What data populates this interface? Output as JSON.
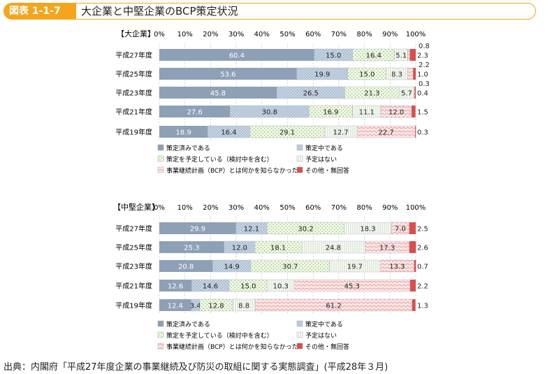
{
  "header": {
    "badge": "図表 1-1-7",
    "title": "大企業と中堅企業のBCP策定状況"
  },
  "source": "出典：内閣府「平成27年度企業の事業継続及び防災の取組に関する実態調査」(平成28年３月)",
  "axis_ticks": [
    "0%",
    "10%",
    "20%",
    "30%",
    "40%",
    "50%",
    "60%",
    "70%",
    "80%",
    "90%",
    "100%"
  ],
  "legend": [
    "策定済みである",
    "策定中である",
    "策定を予定している（検討中を含む）",
    "予定はない",
    "事業継続計画（BCP）とは何かを知らなかった",
    "その他・無回答"
  ],
  "colors": {
    "accent": "#f4a51c",
    "done": "#8ea0b6",
    "inprog": "#c6d3e2",
    "planned": "#e9f3d9",
    "none": "#f7f7f0",
    "unknown": "#f9dede",
    "other": "#d94f4f"
  },
  "chart_data": [
    {
      "type": "bar",
      "orientation": "horizontal",
      "stacked": true,
      "title": "【大企業】",
      "categories": [
        "平成27年度",
        "平成25年度",
        "平成23年度",
        "平成21年度",
        "平成19年度"
      ],
      "series": [
        {
          "name": "策定済みである",
          "values": [
            60.4,
            53.6,
            45.8,
            27.6,
            18.9
          ]
        },
        {
          "name": "策定中である",
          "values": [
            15.0,
            19.9,
            26.5,
            30.8,
            16.4
          ]
        },
        {
          "name": "策定を予定している（検討中を含む）",
          "values": [
            16.4,
            15.0,
            21.3,
            16.9,
            29.1
          ]
        },
        {
          "name": "予定はない",
          "values": [
            5.1,
            8.3,
            5.7,
            11.1,
            12.7
          ]
        },
        {
          "name": "事業継続計画（BCP）とは何かを知らなかった",
          "values": [
            0.8,
            2.2,
            0.3,
            12.0,
            22.7
          ]
        },
        {
          "name": "その他・無回答",
          "values": [
            2.3,
            1.0,
            0.4,
            1.5,
            0.3
          ]
        }
      ],
      "label_text": [
        [
          "60.4",
          "15.0",
          "16.4",
          "5.1",
          "0.8",
          "2.3"
        ],
        [
          "53.6",
          "19.9",
          "15.0",
          "8.3",
          "2.2",
          "1.0"
        ],
        [
          "45.8",
          "26.5",
          "21.3",
          "5.7",
          "0.3",
          "0.4"
        ],
        [
          "27.6",
          "30.8",
          "16.9",
          "11.1",
          "12.0",
          "1.5"
        ],
        [
          "18.9",
          "16.4",
          "29.1",
          "12.7",
          "22.7",
          "0.3"
        ]
      ],
      "xlim": [
        0,
        100
      ]
    },
    {
      "type": "bar",
      "orientation": "horizontal",
      "stacked": true,
      "title": "【中堅企業】",
      "categories": [
        "平成27年度",
        "平成25年度",
        "平成23年度",
        "平成21年度",
        "平成19年度"
      ],
      "series": [
        {
          "name": "策定済みである",
          "values": [
            29.9,
            25.3,
            20.8,
            12.6,
            12.4
          ]
        },
        {
          "name": "策定中である",
          "values": [
            12.1,
            12.0,
            14.9,
            14.6,
            3.4
          ]
        },
        {
          "name": "策定を予定している（検討中を含む）",
          "values": [
            30.2,
            18.1,
            30.7,
            15.0,
            12.8
          ]
        },
        {
          "name": "予定はない",
          "values": [
            18.3,
            24.8,
            19.7,
            10.3,
            8.8
          ]
        },
        {
          "name": "事業継続計画（BCP）とは何かを知らなかった",
          "values": [
            7.0,
            17.3,
            13.3,
            45.3,
            61.2
          ]
        },
        {
          "name": "その他・無回答",
          "values": [
            2.5,
            2.6,
            0.7,
            2.2,
            1.3
          ]
        }
      ],
      "label_text": [
        [
          "29.9",
          "12.1",
          "30.2",
          "18.3",
          "7.0",
          "2.5"
        ],
        [
          "25.3",
          "12.0",
          "18.1",
          "24.8",
          "17.3",
          "2.6"
        ],
        [
          "20.8",
          "14.9",
          "30.7",
          "19.7",
          "13.3",
          "0.7"
        ],
        [
          "12.6",
          "14.6",
          "15.0",
          "10.3",
          "45.3",
          "2.2"
        ],
        [
          "12.4",
          "3.4",
          "12.8",
          "8.8",
          "61.2",
          "1.3"
        ]
      ],
      "xlim": [
        0,
        100
      ]
    }
  ]
}
